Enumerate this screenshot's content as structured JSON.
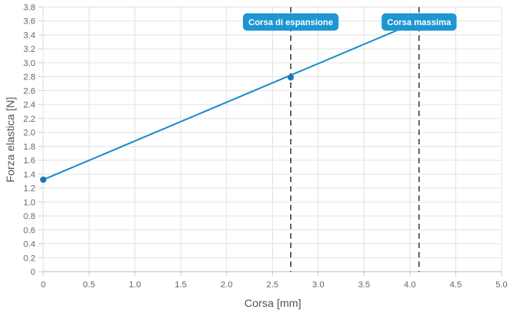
{
  "chart_data": {
    "type": "line",
    "xlabel": "Corsa [mm]",
    "ylabel": "Forza elastica [N]",
    "xlim": [
      0,
      5.0
    ],
    "ylim": [
      0,
      3.8
    ],
    "x_ticks": [
      "0",
      "0.5",
      "1.0",
      "1.5",
      "2.0",
      "2.5",
      "3.0",
      "3.5",
      "4.0",
      "4.5",
      "5.0"
    ],
    "y_ticks": [
      "0",
      "0.2",
      "0.4",
      "0.6",
      "0.8",
      "1.0",
      "1.2",
      "1.4",
      "1.6",
      "1.8",
      "2.0",
      "2.2",
      "2.4",
      "2.6",
      "2.8",
      "3.0",
      "3.2",
      "3.4",
      "3.6",
      "3.8"
    ],
    "grid": true,
    "line": {
      "x": [
        0,
        4.1
      ],
      "y": [
        1.32,
        3.6
      ]
    },
    "points": [
      {
        "x": 0,
        "y": 1.32
      },
      {
        "x": 2.7,
        "y": 2.79
      }
    ],
    "markers": [
      {
        "x": 2.7,
        "label": "Corsa di espansione"
      },
      {
        "x": 4.1,
        "label": "Corsa massima"
      }
    ],
    "colors": {
      "line": "#1a8ccd",
      "point": "#1a78b4",
      "marker_line": "#444444",
      "marker_label_bg": "#1e96d2",
      "grid": "#e3e3e3"
    }
  }
}
